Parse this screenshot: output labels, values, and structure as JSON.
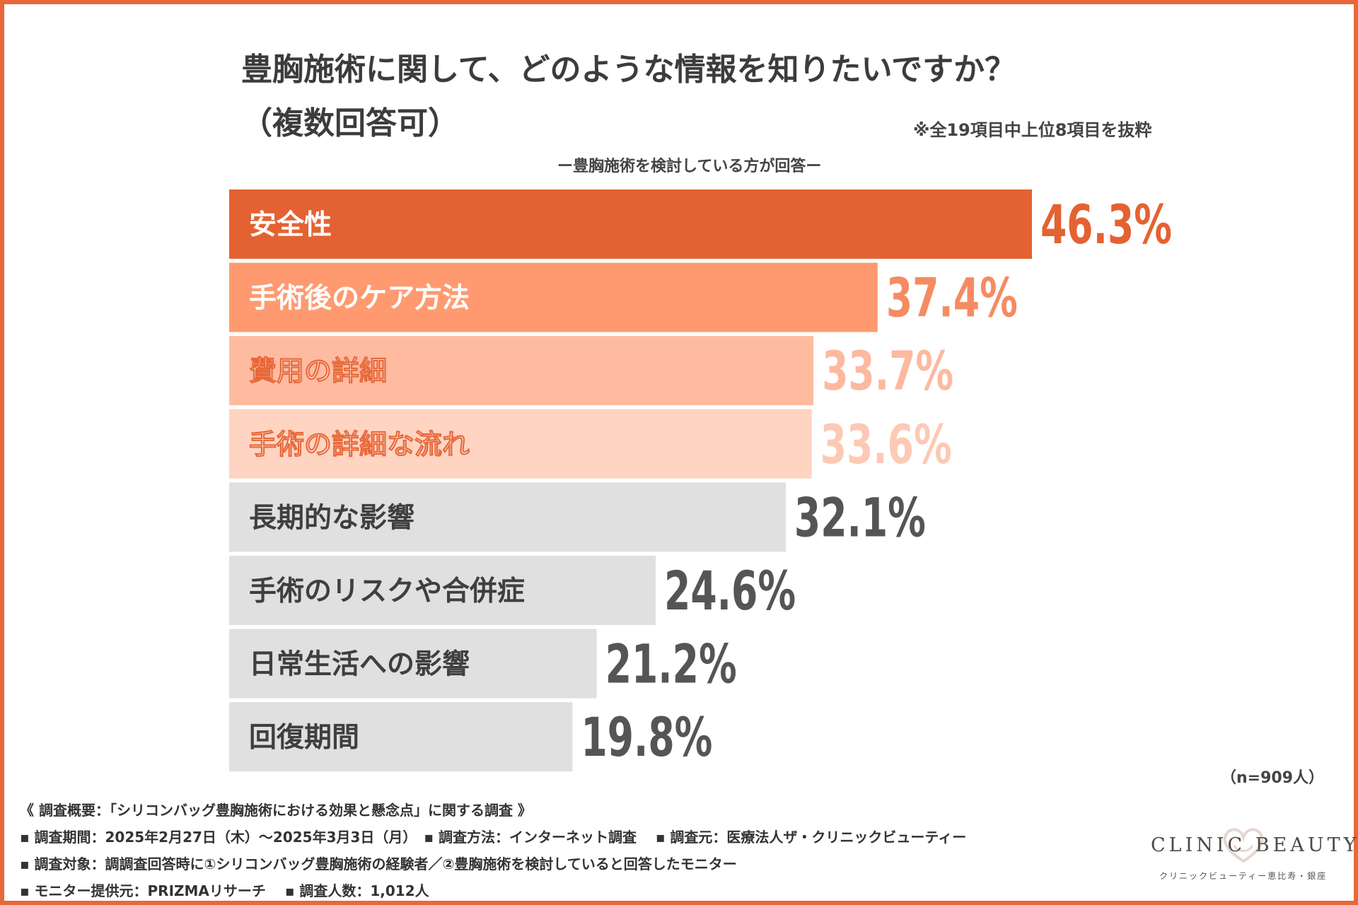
{
  "title": {
    "line1": "豊胸施術に関して、どのような情報を知りたいですか？",
    "line2": "（複数回答可）"
  },
  "note": "※全19項目中上位8項目を抜粋",
  "subtitle": "ー豊胸施術を検討している方が回答ー",
  "chart_data": {
    "type": "bar",
    "orientation": "horizontal",
    "title": "豊胸施術に関して、どのような情報を知りたいですか？（複数回答可）",
    "categories": [
      "安全性",
      "手術後のケア方法",
      "費用の詳細",
      "手術の詳細な流れ",
      "長期的な影響",
      "手術のリスクや合併症",
      "日常生活への影響",
      "回復期間"
    ],
    "values": [
      46.3,
      37.4,
      33.7,
      33.6,
      32.1,
      24.6,
      21.2,
      19.8
    ],
    "value_labels": [
      "46.3%",
      "37.4%",
      "33.7%",
      "33.6%",
      "32.1%",
      "24.6%",
      "21.2%",
      "19.8%"
    ],
    "unit": "%",
    "xlim": [
      0,
      46.3
    ],
    "bar_colors": [
      "#E46232",
      "#FF9A70",
      "#FFBBA0",
      "#FFD4C2",
      "#E0E0E0",
      "#E0E0E0",
      "#E0E0E0",
      "#E0E0E0"
    ],
    "label_colors": [
      "#ffffff",
      "#ffffff",
      "#ffffff",
      "#ffffff",
      "#3f3f3f",
      "#3f3f3f",
      "#3f3f3f",
      "#3f3f3f"
    ],
    "value_colors": [
      "#E46232",
      "#F58B62",
      "#FDB9A0",
      "#FDC9B5",
      "#555555",
      "#555555",
      "#555555",
      "#555555"
    ],
    "grid": false
  },
  "sample_size": "（n=909人）",
  "survey": {
    "heading": "《 調査概要：「シリコンバッグ豊胸施術における効果と懸念点」に関する調査 》",
    "line1": "▪ 調査期間：2025年2月27日（木）～2025年3月3日（月）　▪ 調査方法：インターネット調査　 ▪ 調査元：医療法人ザ・クリニックビューティー",
    "line2": "▪ 調査対象：調調査回答時に①シリコンバッグ豊胸施術の経験者／②豊胸施術を検討していると回答したモニター",
    "line3": "▪ モニター提供元：PRIZMAリサーチ 　▪ 調査人数：1,012人"
  },
  "logo": {
    "name": "CLINIC BEAUTY",
    "sub": "クリニックビューティー恵比寿・銀座"
  }
}
